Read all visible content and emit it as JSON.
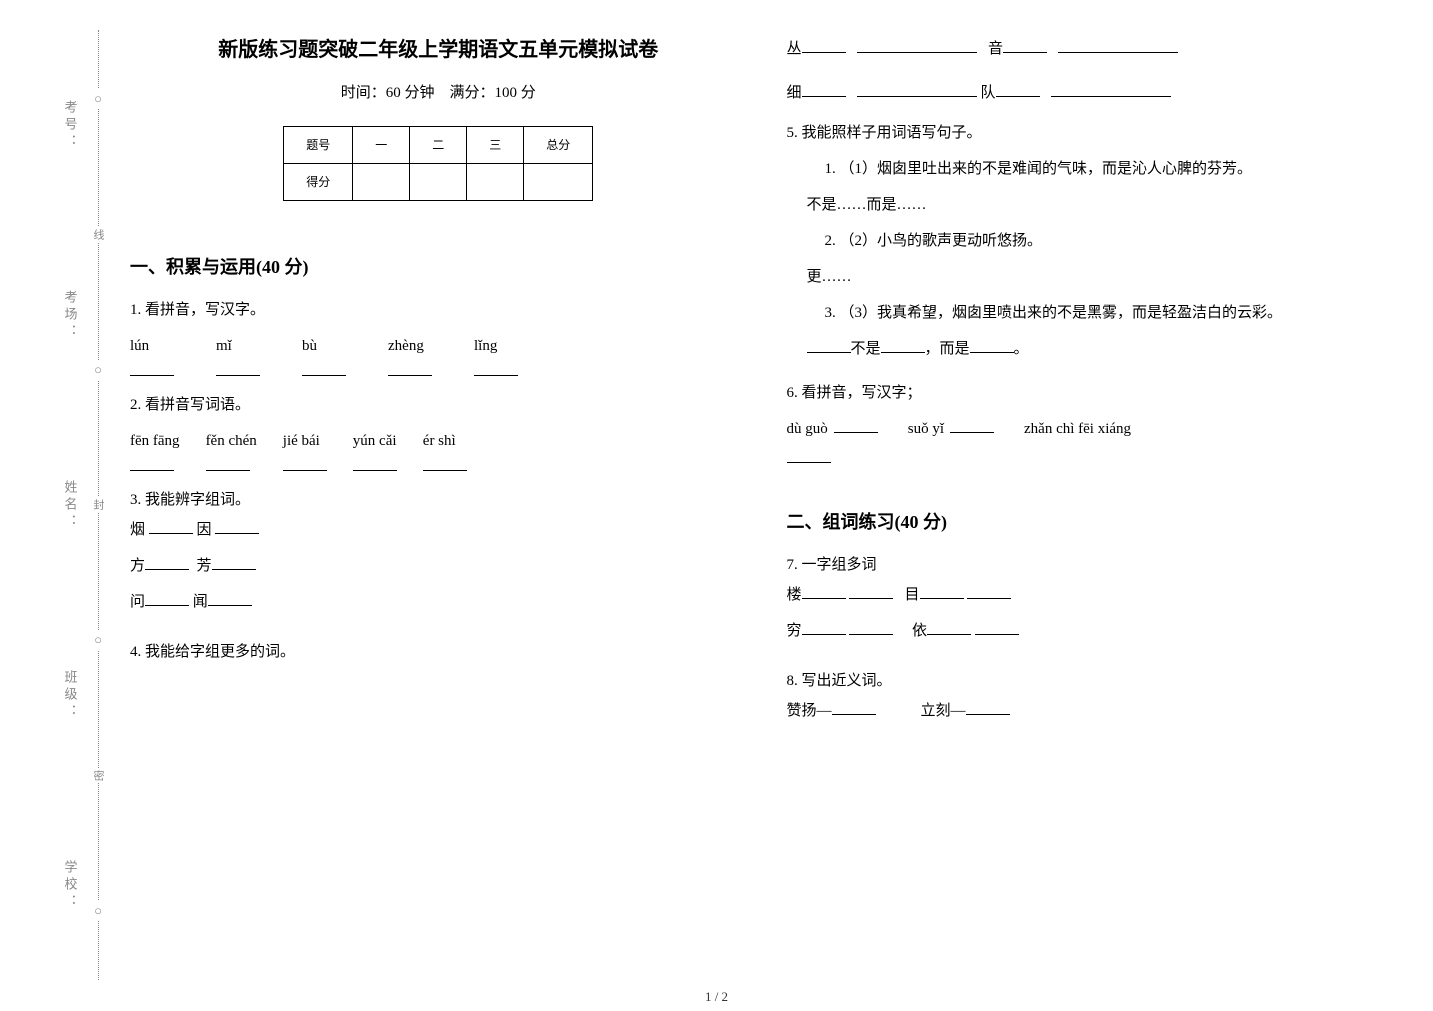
{
  "side": {
    "labels": [
      "考号：",
      "考场：",
      "姓名：",
      "班级：",
      "学校："
    ],
    "seal_labels": [
      "线",
      "封",
      "密"
    ],
    "circle_glyph": "○"
  },
  "header": {
    "title": "新版练习题突破二年级上学期语文五单元模拟试卷",
    "subtitle": "时间：60 分钟　满分：100 分"
  },
  "score_table": {
    "headers": [
      "题号",
      "一",
      "二",
      "三",
      "总分"
    ],
    "row_label": "得分"
  },
  "section1": {
    "title": "一、积累与运用(40 分)",
    "q1": {
      "text": "1.  看拼音，写汉字。",
      "pinyin": [
        "lún",
        "mǐ",
        "bù",
        "zhèng",
        "lǐng"
      ]
    },
    "q2": {
      "text": "2.  看拼音写词语。",
      "pinyin": [
        "fēn fāng",
        "fěn chén",
        "jié bái",
        "yún cǎi",
        "ér shì"
      ]
    },
    "q3": {
      "text": "3.  我能辨字组词。",
      "pairs": [
        [
          "烟",
          "因"
        ],
        [
          "方",
          "芳"
        ],
        [
          "问",
          "闻"
        ]
      ]
    },
    "q4": {
      "text": "4.  我能给字组更多的词。",
      "chars_left": [
        "丛",
        "细"
      ],
      "chars_right": [
        "音",
        "队"
      ]
    },
    "q5": {
      "text": "5.  我能照样子用词语写句子。",
      "items": [
        {
          "num": "1.",
          "body": "（1）烟囱里吐出来的不是难闻的气味，而是沁人心脾的芬芳。"
        },
        {
          "num": "2.",
          "body": "（2）小鸟的歌声更动听悠扬。"
        },
        {
          "num": "3.",
          "body": "（3）我真希望，烟囱里喷出来的不是黑雾，而是轻盈洁白的云彩。"
        }
      ],
      "pattern1": "不是……而是……",
      "pattern2": "更……",
      "fill_left": "不是",
      "fill_mid": "，而是",
      "fill_end": "。"
    },
    "q6": {
      "text": "6.  看拼音，写汉字；",
      "pinyin": [
        "dù guò",
        "suǒ yǐ",
        "zhǎn chì fēi xiáng"
      ]
    }
  },
  "section2": {
    "title": "二、组词练习(40 分)",
    "q7": {
      "text": "7.  一字组多词",
      "chars_left": [
        "楼",
        "穷"
      ],
      "chars_right": [
        "目",
        "依"
      ]
    },
    "q8": {
      "text": "8.  写出近义词。",
      "words": [
        "赞扬—",
        "立刻—"
      ]
    }
  },
  "footer": "1 / 2",
  "style": {
    "title_fontsize": 20,
    "body_fontsize": 15,
    "side_color": "#888888",
    "text_color": "#000000",
    "bg_color": "#ffffff"
  }
}
